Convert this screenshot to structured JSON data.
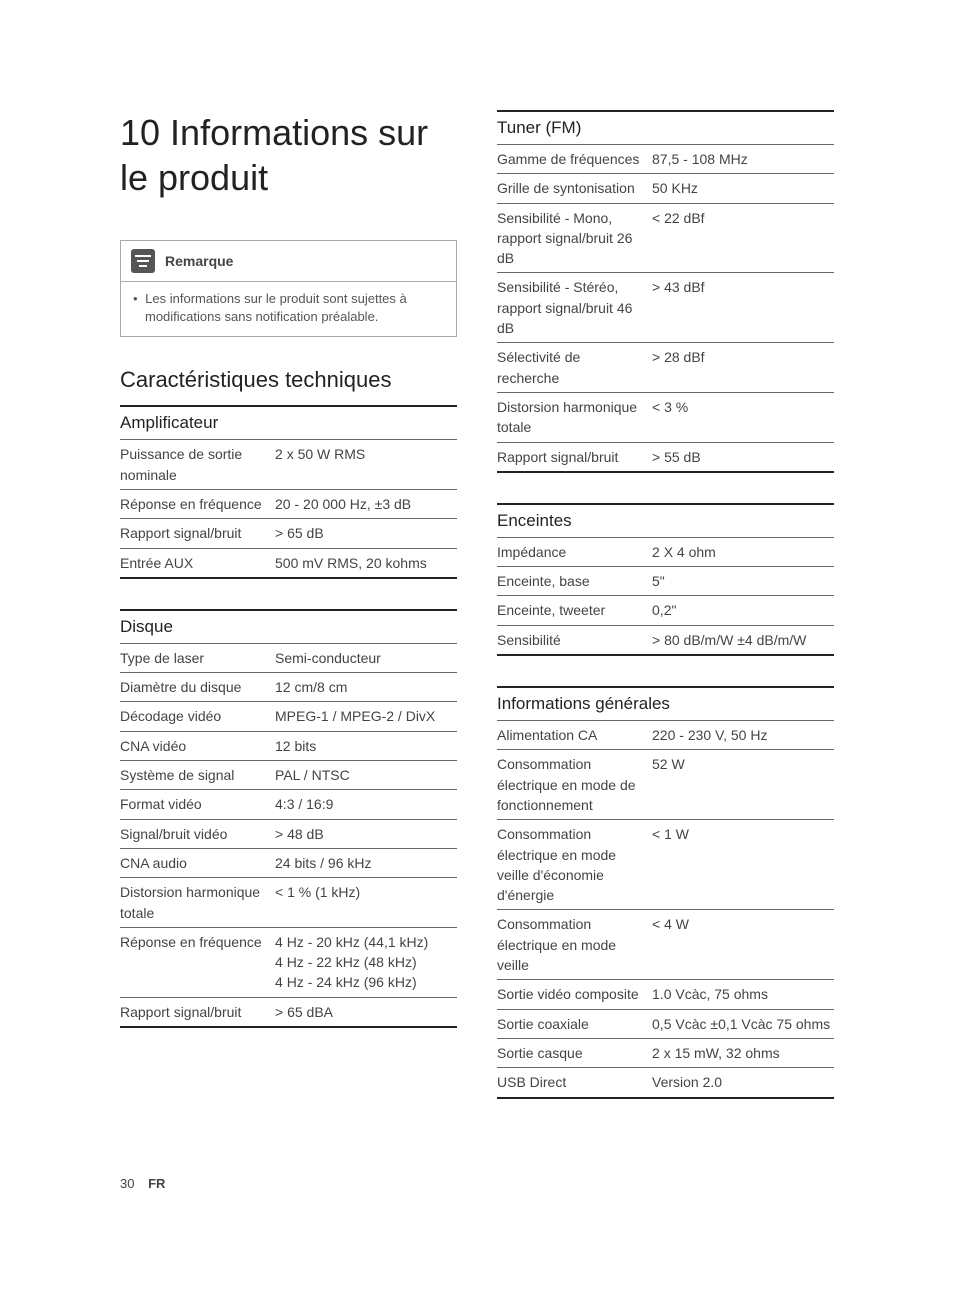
{
  "title": "10 Informations sur le produit",
  "note": {
    "label": "Remarque",
    "body": "Les informations sur le produit sont sujettes à modifications sans notification préalable."
  },
  "section_heading": "Caractéristiques techniques",
  "tables": {
    "amp": {
      "title": "Amplificateur",
      "rows": [
        {
          "label": "Puissance de sortie nominale",
          "value": "2 x 50 W RMS"
        },
        {
          "label": "Réponse en fréquence",
          "value": "20 - 20 000 Hz, ±3 dB"
        },
        {
          "label": "Rapport signal/bruit",
          "value": "> 65 dB"
        },
        {
          "label": "Entrée AUX",
          "value": "500 mV RMS, 20 kohms"
        }
      ]
    },
    "disc": {
      "title": "Disque",
      "rows": [
        {
          "label": "Type de laser",
          "value": "Semi-conducteur"
        },
        {
          "label": "Diamètre du disque",
          "value": "12 cm/8 cm"
        },
        {
          "label": "Décodage vidéo",
          "value": "MPEG-1 / MPEG-2 / DivX"
        },
        {
          "label": "CNA vidéo",
          "value": "12 bits"
        },
        {
          "label": "Système de signal",
          "value": "PAL / NTSC"
        },
        {
          "label": "Format vidéo",
          "value": "4:3 / 16:9"
        },
        {
          "label": "Signal/bruit vidéo",
          "value": "> 48 dB"
        },
        {
          "label": "CNA audio",
          "value": "24 bits / 96 kHz"
        },
        {
          "label": "Distorsion harmonique totale",
          "value": "< 1 % (1 kHz)"
        },
        {
          "label": "Réponse en fréquence",
          "value": "4 Hz - 20 kHz (44,1 kHz)\n4 Hz - 22 kHz (48 kHz)\n4 Hz - 24 kHz (96 kHz)"
        },
        {
          "label": "Rapport signal/bruit",
          "value": "> 65 dBA"
        }
      ]
    },
    "tuner": {
      "title": "Tuner (FM)",
      "rows": [
        {
          "label": "Gamme de fréquences",
          "value": "87,5 - 108 MHz"
        },
        {
          "label": "Grille de syntonisation",
          "value": "50 KHz"
        },
        {
          "label": "Sensibilité - Mono, rapport signal/bruit 26 dB",
          "value": "< 22 dBf"
        },
        {
          "label": "Sensibilité - Stéréo, rapport signal/bruit 46 dB",
          "value": "> 43 dBf"
        },
        {
          "label": "Sélectivité de recherche",
          "value": "> 28 dBf"
        },
        {
          "label": "Distorsion harmonique totale",
          "value": "< 3 %"
        },
        {
          "label": "Rapport signal/bruit",
          "value": "> 55 dB"
        }
      ]
    },
    "speakers": {
      "title": "Enceintes",
      "rows": [
        {
          "label": "Impédance",
          "value": "2 X 4 ohm"
        },
        {
          "label": "Enceinte, base",
          "value": "5\""
        },
        {
          "label": "Enceinte, tweeter",
          "value": "0,2\""
        },
        {
          "label": "Sensibilité",
          "value": "> 80 dB/m/W ±4 dB/m/W"
        }
      ]
    },
    "general": {
      "title": "Informations générales",
      "rows": [
        {
          "label": "Alimentation CA",
          "value": "220 - 230 V, 50 Hz"
        },
        {
          "label": "Consommation électrique en mode de fonctionnement",
          "value": "52 W"
        },
        {
          "label": "Consommation électrique en mode veille d'économie d'énergie",
          "value": "< 1 W"
        },
        {
          "label": "Consommation électrique en mode veille",
          "value": "< 4 W"
        },
        {
          "label": "Sortie vidéo composite",
          "value": "1.0 Vcàc, 75 ohms"
        },
        {
          "label": "Sortie coaxiale",
          "value": "0,5 Vcàc ±0,1 Vcàc 75 ohms"
        },
        {
          "label": "Sortie casque",
          "value": "2 x 15 mW, 32 ohms"
        },
        {
          "label": "USB Direct",
          "value": "Version 2.0"
        }
      ]
    }
  },
  "footer": {
    "page": "30",
    "lang": "FR"
  }
}
